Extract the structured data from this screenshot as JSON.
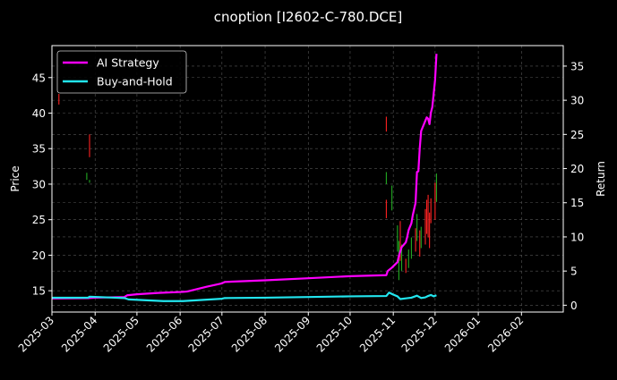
{
  "chart_data": {
    "type": "line",
    "title": "cnoption [I2602-C-780.DCE]",
    "ylabel": "Price",
    "y2label": "Return",
    "ylim": [
      12.0,
      49.5
    ],
    "y2lim": [
      -1.0,
      38.0
    ],
    "xlim": [
      "2025-03-01",
      "2026-03-03"
    ],
    "grid": true,
    "legend_position": "top-left",
    "x_ticks": [
      "2025-03",
      "2025-04",
      "2025-05",
      "2025-06",
      "2025-07",
      "2025-08",
      "2025-09",
      "2025-10",
      "2025-11",
      "2025-12",
      "2026-01",
      "2026-02"
    ],
    "y_ticks": [
      15,
      20,
      25,
      30,
      35,
      40,
      45
    ],
    "y2_ticks": [
      0,
      5,
      10,
      15,
      20,
      25,
      30,
      35
    ],
    "colors": {
      "background": "#000000",
      "up_candle": "#22aa22",
      "down_candle": "#ff2222",
      "grid": "#555555"
    },
    "candles": [
      {
        "date": "2025-03-06",
        "low": 41.2,
        "high": 42.7,
        "dir": "down"
      },
      {
        "date": "2025-03-26",
        "low": 30.6,
        "high": 31.6,
        "dir": "up"
      },
      {
        "date": "2025-03-28",
        "low": 33.8,
        "high": 37.0,
        "dir": "down"
      },
      {
        "date": "2025-03-28",
        "low": 30.2,
        "high": 30.6,
        "dir": "up"
      },
      {
        "date": "2025-10-27",
        "low": 37.4,
        "high": 39.5,
        "dir": "down"
      },
      {
        "date": "2025-10-27",
        "low": 30.0,
        "high": 31.7,
        "dir": "up"
      },
      {
        "date": "2025-10-27",
        "low": 25.2,
        "high": 27.8,
        "dir": "down"
      },
      {
        "date": "2025-10-31",
        "low": 26.3,
        "high": 29.8,
        "dir": "up"
      },
      {
        "date": "2025-11-04",
        "low": 20.5,
        "high": 24.2,
        "dir": "up"
      },
      {
        "date": "2025-11-05",
        "low": 16.5,
        "high": 22.0,
        "dir": "up"
      },
      {
        "date": "2025-11-06",
        "low": 19.2,
        "high": 24.8,
        "dir": "down"
      },
      {
        "date": "2025-11-07",
        "low": 17.8,
        "high": 21.5,
        "dir": "up"
      },
      {
        "date": "2025-11-10",
        "low": 17.5,
        "high": 19.5,
        "dir": "down"
      },
      {
        "date": "2025-11-12",
        "low": 18.2,
        "high": 20.8,
        "dir": "up"
      },
      {
        "date": "2025-11-14",
        "low": 19.5,
        "high": 22.5,
        "dir": "up"
      },
      {
        "date": "2025-11-17",
        "low": 20.5,
        "high": 23.8,
        "dir": "down"
      },
      {
        "date": "2025-11-18",
        "low": 22.0,
        "high": 25.8,
        "dir": "up"
      },
      {
        "date": "2025-11-20",
        "low": 19.8,
        "high": 23.5,
        "dir": "down"
      },
      {
        "date": "2025-11-21",
        "low": 21.0,
        "high": 24.0,
        "dir": "up"
      },
      {
        "date": "2025-11-24",
        "low": 21.5,
        "high": 26.5,
        "dir": "down"
      },
      {
        "date": "2025-11-25",
        "low": 23.0,
        "high": 27.8,
        "dir": "down"
      },
      {
        "date": "2025-11-26",
        "low": 22.5,
        "high": 28.5,
        "dir": "down"
      },
      {
        "date": "2025-11-27",
        "low": 21.0,
        "high": 26.0,
        "dir": "down"
      },
      {
        "date": "2025-11-28",
        "low": 24.5,
        "high": 28.0,
        "dir": "down"
      },
      {
        "date": "2025-12-01",
        "low": 25.0,
        "high": 30.2,
        "dir": "down"
      },
      {
        "date": "2025-12-02",
        "low": 27.5,
        "high": 31.5,
        "dir": "up"
      }
    ],
    "series": [
      {
        "name": "AI Strategy",
        "color": "#ff00ff",
        "axis": "right",
        "points": [
          [
            "2025-03-01",
            1.0
          ],
          [
            "2025-03-27",
            1.05
          ],
          [
            "2025-04-01",
            1.1
          ],
          [
            "2025-04-22",
            1.2
          ],
          [
            "2025-04-24",
            1.45
          ],
          [
            "2025-05-01",
            1.6
          ],
          [
            "2025-05-16",
            1.8
          ],
          [
            "2025-06-03",
            1.95
          ],
          [
            "2025-06-06",
            2.0
          ],
          [
            "2025-06-20",
            2.7
          ],
          [
            "2025-07-01",
            3.2
          ],
          [
            "2025-07-03",
            3.4
          ],
          [
            "2025-07-08",
            3.45
          ],
          [
            "2025-08-01",
            3.65
          ],
          [
            "2025-09-01",
            3.95
          ],
          [
            "2025-10-01",
            4.25
          ],
          [
            "2025-10-27",
            4.4
          ],
          [
            "2025-10-28",
            5.0
          ],
          [
            "2025-10-31",
            5.5
          ],
          [
            "2025-11-04",
            6.3
          ],
          [
            "2025-11-05",
            7.2
          ],
          [
            "2025-11-07",
            8.5
          ],
          [
            "2025-11-10",
            9.2
          ],
          [
            "2025-11-11",
            10.0
          ],
          [
            "2025-11-12",
            11.0
          ],
          [
            "2025-11-14",
            12.0
          ],
          [
            "2025-11-15",
            13.2
          ],
          [
            "2025-11-17",
            15.0
          ],
          [
            "2025-11-18",
            19.5
          ],
          [
            "2025-11-19",
            19.6
          ],
          [
            "2025-11-20",
            23.0
          ],
          [
            "2025-11-21",
            25.5
          ],
          [
            "2025-11-24",
            27.0
          ],
          [
            "2025-11-25",
            27.5
          ],
          [
            "2025-11-26",
            27.3
          ],
          [
            "2025-11-27",
            26.5
          ],
          [
            "2025-11-28",
            28.2
          ],
          [
            "2025-11-29",
            29.0
          ],
          [
            "2025-12-01",
            33.0
          ],
          [
            "2025-12-02",
            36.8
          ]
        ]
      },
      {
        "name": "Buy-and-Hold",
        "color": "#22e5ee",
        "axis": "right",
        "points": [
          [
            "2025-03-01",
            1.1
          ],
          [
            "2025-03-27",
            1.1
          ],
          [
            "2025-03-28",
            1.25
          ],
          [
            "2025-04-15",
            1.1
          ],
          [
            "2025-04-22",
            1.05
          ],
          [
            "2025-04-25",
            0.85
          ],
          [
            "2025-05-10",
            0.7
          ],
          [
            "2025-05-20",
            0.6
          ],
          [
            "2025-06-03",
            0.6
          ],
          [
            "2025-06-15",
            0.75
          ],
          [
            "2025-07-01",
            0.95
          ],
          [
            "2025-07-03",
            1.05
          ],
          [
            "2025-08-01",
            1.1
          ],
          [
            "2025-09-01",
            1.2
          ],
          [
            "2025-10-01",
            1.3
          ],
          [
            "2025-10-27",
            1.35
          ],
          [
            "2025-10-29",
            1.85
          ],
          [
            "2025-11-01",
            1.55
          ],
          [
            "2025-11-04",
            1.3
          ],
          [
            "2025-11-06",
            0.9
          ],
          [
            "2025-11-10",
            1.0
          ],
          [
            "2025-11-14",
            1.1
          ],
          [
            "2025-11-18",
            1.4
          ],
          [
            "2025-11-21",
            1.05
          ],
          [
            "2025-11-24",
            1.15
          ],
          [
            "2025-11-26",
            1.35
          ],
          [
            "2025-11-28",
            1.5
          ],
          [
            "2025-11-30",
            1.3
          ],
          [
            "2025-12-02",
            1.45
          ]
        ]
      }
    ]
  }
}
